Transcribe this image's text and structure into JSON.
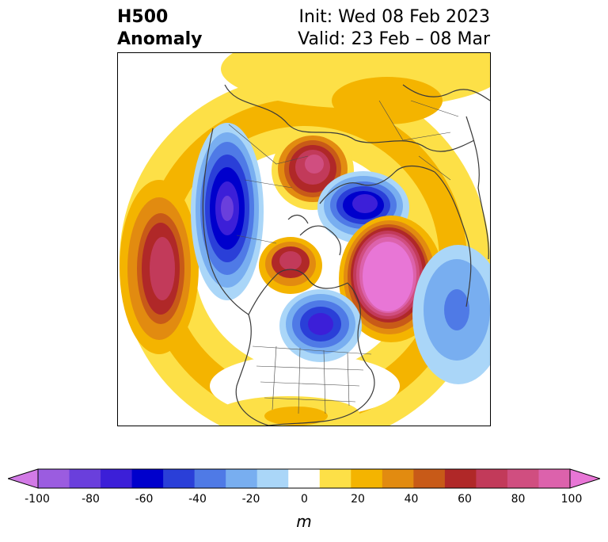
{
  "header": {
    "title_line1": "H500",
    "title_line2": "Anomaly",
    "init": "Init: Wed 08 Feb 2023",
    "valid": "Valid: 23 Feb – 08 Mar"
  },
  "colorbar": {
    "unit_label": "m",
    "tick_labels": [
      "-100",
      "-80",
      "-60",
      "-40",
      "-20",
      "0",
      "20",
      "40",
      "60",
      "80",
      "100"
    ],
    "colors": [
      "#d27ae6",
      "#9b5ce0",
      "#6a3fdc",
      "#3c1fd8",
      "#0000cc",
      "#2a3fd8",
      "#4f7ae6",
      "#78aef0",
      "#aad6f8",
      "#ffffff",
      "#fde047",
      "#f4b400",
      "#e28b10",
      "#c85a18",
      "#b02828",
      "#c23a5a",
      "#d04e80",
      "#dc62ac",
      "#e876d6"
    ]
  },
  "map": {
    "projection": "north-polar-stereographic",
    "features": [
      "coastlines",
      "country-borders",
      "us-states"
    ]
  }
}
